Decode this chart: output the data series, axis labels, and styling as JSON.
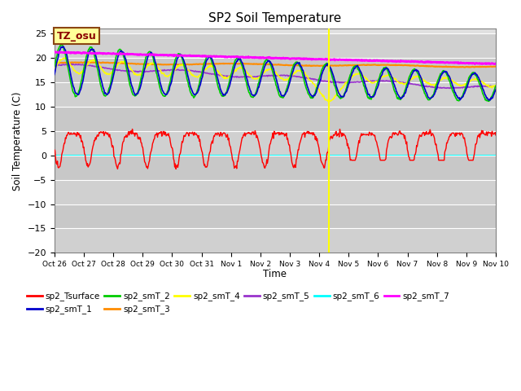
{
  "title": "SP2 Soil Temperature",
  "ylabel": "Soil Temperature (C)",
  "xlabel": "Time",
  "ylim": [
    -20,
    26
  ],
  "yticks": [
    -20,
    -15,
    -10,
    -5,
    0,
    5,
    10,
    15,
    20,
    25
  ],
  "x_tick_labels": [
    "Oct 26",
    "Oct 27",
    "Oct 28",
    "Oct 29",
    "Oct 30",
    "Oct 31",
    "Nov 1",
    "Nov 2",
    "Nov 3",
    "Nov 4",
    "Nov 5",
    "Nov 6",
    "Nov 7",
    "Nov 8",
    "Nov 9",
    "Nov 10"
  ],
  "annotation_text": "TZ_osu",
  "annotation_box_color": "#FFFF99",
  "annotation_box_edge": "#8B4513",
  "annotation_text_color": "#8B0000",
  "vline_x": 9.33,
  "vline_color": "#FFFF00",
  "background_color": "#E8E8E8",
  "band_color_light": "#DCDCDC",
  "band_color_dark": "#C8C8C8",
  "series_colors": {
    "sp2_Tsurface": "#FF0000",
    "sp2_smT_1": "#0000CC",
    "sp2_smT_2": "#00CC00",
    "sp2_smT_3": "#FF8C00",
    "sp2_smT_4": "#FFFF00",
    "sp2_smT_5": "#9933CC",
    "sp2_smT_6": "#00FFFF",
    "sp2_smT_7": "#FF00FF"
  }
}
